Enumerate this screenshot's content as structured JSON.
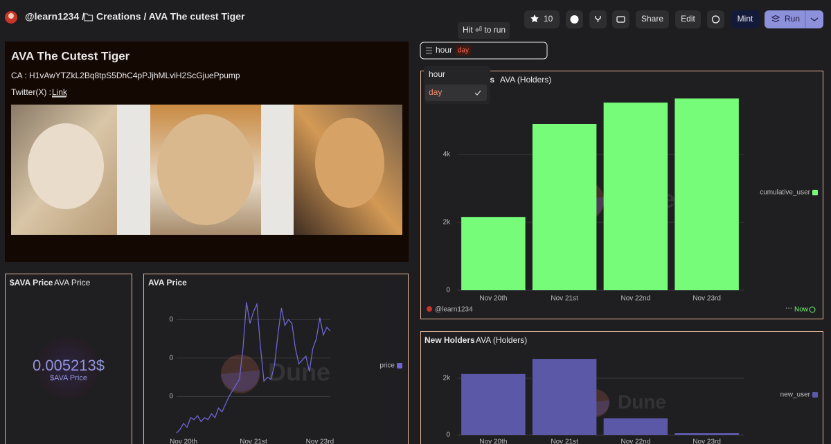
{
  "header": {
    "owner": "@learn1234 /",
    "path": "Creations / AVA The cutest Tiger"
  },
  "toolbar": {
    "stars": "10",
    "share": "Share",
    "edit": "Edit",
    "mint": "Mint",
    "run": "Run"
  },
  "tooltip": "Hit ⏎ to run",
  "parameter": {
    "value": "hour",
    "tag": "day",
    "options": [
      "hour",
      "day"
    ]
  },
  "text_widget": {
    "title": "AVA The Cutest Tiger",
    "ca": "CA : H1vAwYTZkL2Bq8tpS5DhC4pPJjhMLviH2ScGjuePpump",
    "twitter": "Twitter(X) : ",
    "link": "Link"
  },
  "counter": {
    "title": "$AVA Price",
    "subtitle": "AVA Price",
    "value": "0.005213$",
    "caption": "$AVA Price"
  },
  "watermark": "Dune",
  "footer": {
    "author": "@learn1234",
    "status": "Now"
  },
  "chart_data": [
    {
      "type": "bar",
      "title": "Total Holders",
      "subtitle": "AVA (Holders)",
      "categories": [
        "Nov 20th",
        "Nov 21st",
        "Nov 22nd",
        "Nov 23rd"
      ],
      "series": [
        {
          "name": "cumulative_user",
          "color": "#76fc79",
          "values": [
            2160,
            4900,
            5530,
            5650
          ]
        }
      ],
      "ylim": [
        0,
        5900
      ],
      "yticks": [
        0,
        {
          "value": 2000,
          "label": "2k"
        },
        {
          "value": 4000,
          "label": "4k"
        }
      ],
      "grid": true
    },
    {
      "type": "line",
      "title": "AVA Price",
      "series": [
        {
          "name": "price",
          "color": "#6f66d4",
          "values": [
            1e-05,
            3e-05,
            6e-05,
            4e-05,
            9e-05,
            8e-05,
            0.0001,
            7e-05,
            9e-05,
            8e-05,
            0.00011,
            9e-05,
            0.00014,
            0.00012,
            0.00016,
            0.0002,
            0.00023,
            0.00026,
            0.00029,
            0.00045,
            0.00069,
            0.00058,
            0.00064,
            0.00068,
            0.00046,
            0.00028,
            0.0003,
            0.00029,
            0.00036,
            0.00052,
            0.00066,
            0.00057,
            0.0006,
            0.00058,
            0.00045,
            0.00037,
            0.00039,
            0.00041,
            0.00033,
            0.00045,
            0.0005,
            0.00061,
            0.00052,
            0.00056,
            0.00054
          ]
        }
      ],
      "xticks": [
        {
          "value": 2,
          "label": "Nov 20th"
        },
        {
          "value": 22,
          "label": "Nov 21st"
        },
        {
          "value": 41,
          "label": "Nov 23rd"
        }
      ],
      "ylim": [
        0,
        0.00072
      ],
      "yticks": [
        {
          "value": 0.0002,
          "label": "0"
        },
        {
          "value": 0.0004,
          "label": "0"
        },
        {
          "value": 0.0006,
          "label": "0"
        }
      ],
      "grid": true
    },
    {
      "type": "bar",
      "title": "New Holders",
      "subtitle": "AVA (Holders)",
      "categories": [
        "Nov 20th",
        "Nov 21st",
        "Nov 22nd",
        "Nov 23rd"
      ],
      "series": [
        {
          "name": "new_user",
          "color": "#5b58a8",
          "values": [
            2150,
            2680,
            585,
            73
          ]
        }
      ],
      "ylim": [
        0,
        3000
      ],
      "yticks": [
        0,
        {
          "value": 2000,
          "label": "2k"
        }
      ],
      "grid": true
    }
  ]
}
